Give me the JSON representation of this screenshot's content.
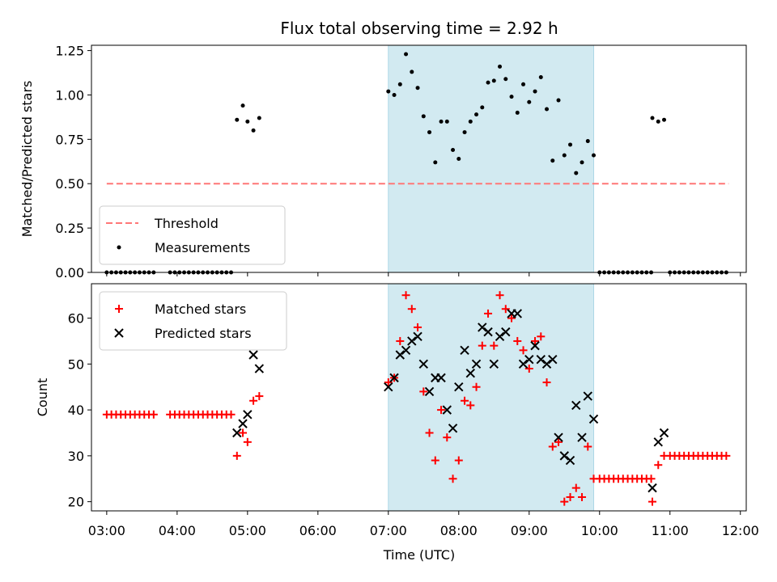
{
  "figure": {
    "title": "Flux total observing time = 2.92 h",
    "xlabel": "Time (UTC)",
    "colors": {
      "threshold": "#ff7777",
      "shade": "#add8e6",
      "matched": "#ff0000",
      "predicted": "#000000",
      "measurement": "#000000"
    }
  },
  "chart_data": [
    {
      "type": "scatter",
      "ylabel": "Matched/Predicted stars",
      "xlim": [
        "02:47",
        "12:05"
      ],
      "ylim": [
        0,
        1.28
      ],
      "yticks": [
        "0.00",
        "0.25",
        "0.50",
        "0.75",
        "1.00",
        "1.25"
      ],
      "xticks": [
        "03:00",
        "04:00",
        "05:00",
        "06:00",
        "07:00",
        "08:00",
        "09:00",
        "10:00",
        "11:00",
        "12:00"
      ],
      "shaded_interval": [
        "07:00",
        "09:55"
      ],
      "legend": {
        "position": "lower-left",
        "entries": [
          "Threshold",
          "Measurements"
        ]
      },
      "threshold": {
        "name": "Threshold",
        "value": 0.5,
        "x": [
          "03:00",
          "11:50"
        ]
      },
      "series": [
        {
          "name": "Measurements",
          "points": [
            [
              "03:00",
              0
            ],
            [
              "03:04",
              0
            ],
            [
              "03:08",
              0
            ],
            [
              "03:12",
              0
            ],
            [
              "03:16",
              0
            ],
            [
              "03:20",
              0
            ],
            [
              "03:24",
              0
            ],
            [
              "03:28",
              0
            ],
            [
              "03:32",
              0
            ],
            [
              "03:36",
              0
            ],
            [
              "03:40",
              0
            ],
            [
              "03:54",
              0
            ],
            [
              "03:58",
              0
            ],
            [
              "04:02",
              0
            ],
            [
              "04:06",
              0
            ],
            [
              "04:10",
              0
            ],
            [
              "04:14",
              0
            ],
            [
              "04:18",
              0
            ],
            [
              "04:22",
              0
            ],
            [
              "04:26",
              0
            ],
            [
              "04:30",
              0
            ],
            [
              "04:34",
              0
            ],
            [
              "04:38",
              0
            ],
            [
              "04:42",
              0
            ],
            [
              "04:46",
              0
            ],
            [
              "04:51",
              0.86
            ],
            [
              "04:56",
              0.94
            ],
            [
              "05:00",
              0.85
            ],
            [
              "05:05",
              0.8
            ],
            [
              "05:10",
              0.87
            ],
            [
              "07:00",
              1.02
            ],
            [
              "07:05",
              1.0
            ],
            [
              "07:10",
              1.06
            ],
            [
              "07:15",
              1.23
            ],
            [
              "07:20",
              1.13
            ],
            [
              "07:25",
              1.04
            ],
            [
              "07:30",
              0.88
            ],
            [
              "07:35",
              0.79
            ],
            [
              "07:40",
              0.62
            ],
            [
              "07:45",
              0.85
            ],
            [
              "07:50",
              0.85
            ],
            [
              "07:55",
              0.69
            ],
            [
              "08:00",
              0.64
            ],
            [
              "08:05",
              0.79
            ],
            [
              "08:10",
              0.85
            ],
            [
              "08:15",
              0.89
            ],
            [
              "08:20",
              0.93
            ],
            [
              "08:25",
              1.07
            ],
            [
              "08:30",
              1.08
            ],
            [
              "08:35",
              1.16
            ],
            [
              "08:40",
              1.09
            ],
            [
              "08:45",
              0.99
            ],
            [
              "08:50",
              0.9
            ],
            [
              "08:55",
              1.06
            ],
            [
              "09:00",
              0.96
            ],
            [
              "09:05",
              1.02
            ],
            [
              "09:10",
              1.1
            ],
            [
              "09:15",
              0.92
            ],
            [
              "09:20",
              0.63
            ],
            [
              "09:25",
              0.97
            ],
            [
              "09:30",
              0.66
            ],
            [
              "09:35",
              0.72
            ],
            [
              "09:40",
              0.56
            ],
            [
              "09:45",
              0.62
            ],
            [
              "09:50",
              0.74
            ],
            [
              "09:55",
              0.66
            ],
            [
              "10:00",
              0
            ],
            [
              "10:04",
              0
            ],
            [
              "10:08",
              0
            ],
            [
              "10:12",
              0
            ],
            [
              "10:16",
              0
            ],
            [
              "10:20",
              0
            ],
            [
              "10:24",
              0
            ],
            [
              "10:28",
              0
            ],
            [
              "10:32",
              0
            ],
            [
              "10:36",
              0
            ],
            [
              "10:40",
              0
            ],
            [
              "10:44",
              0
            ],
            [
              "10:45",
              0.87
            ],
            [
              "10:50",
              0.85
            ],
            [
              "10:55",
              0.86
            ],
            [
              "11:00",
              0
            ],
            [
              "11:04",
              0
            ],
            [
              "11:08",
              0
            ],
            [
              "11:12",
              0
            ],
            [
              "11:16",
              0
            ],
            [
              "11:20",
              0
            ],
            [
              "11:24",
              0
            ],
            [
              "11:28",
              0
            ],
            [
              "11:32",
              0
            ],
            [
              "11:36",
              0
            ],
            [
              "11:40",
              0
            ],
            [
              "11:44",
              0
            ],
            [
              "11:48",
              0
            ]
          ]
        }
      ]
    },
    {
      "type": "scatter",
      "ylabel": "Count",
      "xlim": [
        "02:47",
        "12:05"
      ],
      "ylim": [
        18,
        67.5
      ],
      "yticks": [
        "20",
        "30",
        "40",
        "50",
        "60"
      ],
      "xticks": [
        "03:00",
        "04:00",
        "05:00",
        "06:00",
        "07:00",
        "08:00",
        "09:00",
        "10:00",
        "11:00",
        "12:00"
      ],
      "shaded_interval": [
        "07:00",
        "09:55"
      ],
      "legend": {
        "position": "upper-left",
        "entries": [
          "Matched stars",
          "Predicted stars"
        ]
      },
      "series": [
        {
          "name": "Matched stars",
          "marker": "plus",
          "points": [
            [
              "03:00",
              39
            ],
            [
              "03:04",
              39
            ],
            [
              "03:08",
              39
            ],
            [
              "03:12",
              39
            ],
            [
              "03:16",
              39
            ],
            [
              "03:20",
              39
            ],
            [
              "03:24",
              39
            ],
            [
              "03:28",
              39
            ],
            [
              "03:32",
              39
            ],
            [
              "03:36",
              39
            ],
            [
              "03:40",
              39
            ],
            [
              "03:54",
              39
            ],
            [
              "03:58",
              39
            ],
            [
              "04:02",
              39
            ],
            [
              "04:06",
              39
            ],
            [
              "04:10",
              39
            ],
            [
              "04:14",
              39
            ],
            [
              "04:18",
              39
            ],
            [
              "04:22",
              39
            ],
            [
              "04:26",
              39
            ],
            [
              "04:30",
              39
            ],
            [
              "04:34",
              39
            ],
            [
              "04:38",
              39
            ],
            [
              "04:42",
              39
            ],
            [
              "04:46",
              39
            ],
            [
              "04:51",
              30
            ],
            [
              "04:56",
              35
            ],
            [
              "05:00",
              33
            ],
            [
              "05:05",
              42
            ],
            [
              "05:10",
              43
            ],
            [
              "07:00",
              46
            ],
            [
              "07:05",
              47
            ],
            [
              "07:10",
              55
            ],
            [
              "07:15",
              65
            ],
            [
              "07:20",
              62
            ],
            [
              "07:25",
              58
            ],
            [
              "07:30",
              44
            ],
            [
              "07:35",
              35
            ],
            [
              "07:40",
              29
            ],
            [
              "07:45",
              40
            ],
            [
              "07:50",
              34
            ],
            [
              "07:55",
              25
            ],
            [
              "08:00",
              29
            ],
            [
              "08:05",
              42
            ],
            [
              "08:10",
              41
            ],
            [
              "08:15",
              45
            ],
            [
              "08:20",
              54
            ],
            [
              "08:25",
              61
            ],
            [
              "08:30",
              54
            ],
            [
              "08:35",
              65
            ],
            [
              "08:40",
              62
            ],
            [
              "08:45",
              60
            ],
            [
              "08:50",
              55
            ],
            [
              "08:55",
              53
            ],
            [
              "09:00",
              49
            ],
            [
              "09:05",
              55
            ],
            [
              "09:10",
              56
            ],
            [
              "09:15",
              46
            ],
            [
              "09:20",
              32
            ],
            [
              "09:25",
              33
            ],
            [
              "09:30",
              20
            ],
            [
              "09:35",
              21
            ],
            [
              "09:40",
              23
            ],
            [
              "09:45",
              21
            ],
            [
              "09:50",
              32
            ],
            [
              "09:55",
              25
            ],
            [
              "10:00",
              25
            ],
            [
              "10:04",
              25
            ],
            [
              "10:08",
              25
            ],
            [
              "10:12",
              25
            ],
            [
              "10:16",
              25
            ],
            [
              "10:20",
              25
            ],
            [
              "10:24",
              25
            ],
            [
              "10:28",
              25
            ],
            [
              "10:32",
              25
            ],
            [
              "10:36",
              25
            ],
            [
              "10:40",
              25
            ],
            [
              "10:44",
              25
            ],
            [
              "10:45",
              20
            ],
            [
              "10:50",
              28
            ],
            [
              "10:55",
              30
            ],
            [
              "11:00",
              30
            ],
            [
              "11:04",
              30
            ],
            [
              "11:08",
              30
            ],
            [
              "11:12",
              30
            ],
            [
              "11:16",
              30
            ],
            [
              "11:20",
              30
            ],
            [
              "11:24",
              30
            ],
            [
              "11:28",
              30
            ],
            [
              "11:32",
              30
            ],
            [
              "11:36",
              30
            ],
            [
              "11:40",
              30
            ],
            [
              "11:44",
              30
            ],
            [
              "11:48",
              30
            ]
          ]
        },
        {
          "name": "Predicted stars",
          "marker": "x",
          "points": [
            [
              "04:51",
              35
            ],
            [
              "04:56",
              37
            ],
            [
              "05:00",
              39
            ],
            [
              "05:05",
              52
            ],
            [
              "05:10",
              49
            ],
            [
              "07:00",
              45
            ],
            [
              "07:05",
              47
            ],
            [
              "07:10",
              52
            ],
            [
              "07:15",
              53
            ],
            [
              "07:20",
              55
            ],
            [
              "07:25",
              56
            ],
            [
              "07:30",
              50
            ],
            [
              "07:35",
              44
            ],
            [
              "07:40",
              47
            ],
            [
              "07:45",
              47
            ],
            [
              "07:50",
              40
            ],
            [
              "07:55",
              36
            ],
            [
              "08:00",
              45
            ],
            [
              "08:05",
              53
            ],
            [
              "08:10",
              48
            ],
            [
              "08:15",
              50
            ],
            [
              "08:20",
              58
            ],
            [
              "08:25",
              57
            ],
            [
              "08:30",
              50
            ],
            [
              "08:35",
              56
            ],
            [
              "08:40",
              57
            ],
            [
              "08:45",
              61
            ],
            [
              "08:50",
              61
            ],
            [
              "08:55",
              50
            ],
            [
              "09:00",
              51
            ],
            [
              "09:05",
              54
            ],
            [
              "09:10",
              51
            ],
            [
              "09:15",
              50
            ],
            [
              "09:20",
              51
            ],
            [
              "09:25",
              34
            ],
            [
              "09:30",
              30
            ],
            [
              "09:35",
              29
            ],
            [
              "09:40",
              41
            ],
            [
              "09:45",
              34
            ],
            [
              "09:50",
              43
            ],
            [
              "09:55",
              38
            ],
            [
              "10:45",
              23
            ],
            [
              "10:50",
              33
            ],
            [
              "10:55",
              35
            ]
          ]
        }
      ]
    }
  ]
}
